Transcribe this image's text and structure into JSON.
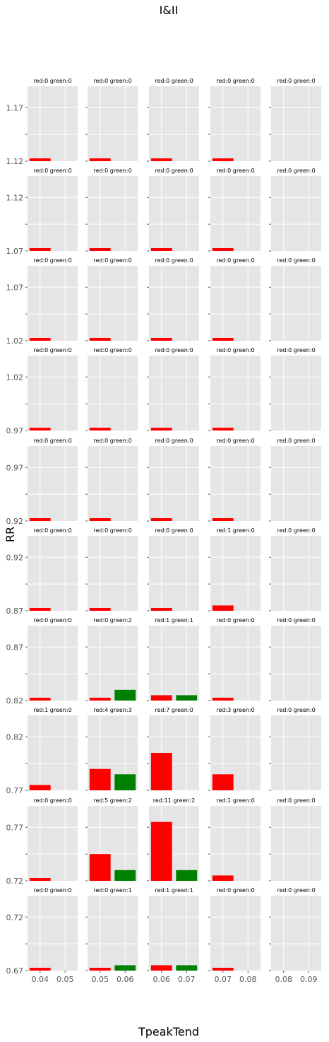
{
  "figure": {
    "title": "I&II",
    "xlabel": "TpeakTend",
    "ylabel": "RR"
  },
  "chart_data": {
    "type": "bar",
    "title": "I&II",
    "xlabel": "TpeakTend",
    "ylabel": "RR",
    "grid": true,
    "colors": {
      "red": "#ff0000",
      "green": "#008000",
      "panel_bg": "#e5e5e5",
      "grid": "#ffffff"
    },
    "rows": [
      {
        "ylim": [
          1.12,
          1.19
        ],
        "yticks": [
          "1.17",
          "1.12"
        ],
        "cells": [
          [
            0,
            0
          ],
          [
            0,
            0
          ],
          [
            0,
            0
          ],
          [
            0,
            0
          ],
          [
            0,
            0
          ]
        ]
      },
      {
        "ylim": [
          1.07,
          1.14
        ],
        "yticks": [
          "1.12",
          "1.07"
        ],
        "cells": [
          [
            0,
            0
          ],
          [
            0,
            0
          ],
          [
            0,
            0
          ],
          [
            0,
            0
          ],
          [
            0,
            0
          ]
        ]
      },
      {
        "ylim": [
          1.02,
          1.09
        ],
        "yticks": [
          "1.07",
          "1.02"
        ],
        "cells": [
          [
            0,
            0
          ],
          [
            0,
            0
          ],
          [
            0,
            0
          ],
          [
            0,
            0
          ],
          [
            0,
            0
          ]
        ]
      },
      {
        "ylim": [
          0.97,
          1.04
        ],
        "yticks": [
          "1.02",
          "0.97"
        ],
        "cells": [
          [
            0,
            0
          ],
          [
            0,
            0
          ],
          [
            0,
            0
          ],
          [
            0,
            0
          ],
          [
            0,
            0
          ]
        ]
      },
      {
        "ylim": [
          0.92,
          0.99
        ],
        "yticks": [
          "0.97",
          "0.92"
        ],
        "cells": [
          [
            0,
            0
          ],
          [
            0,
            0
          ],
          [
            0,
            0
          ],
          [
            0,
            0
          ],
          [
            0,
            0
          ]
        ]
      },
      {
        "ylim": [
          0.87,
          0.94
        ],
        "yticks": [
          "0.92",
          "0.87"
        ],
        "cells": [
          [
            0,
            0
          ],
          [
            0,
            0
          ],
          [
            0,
            0
          ],
          [
            1,
            0
          ],
          [
            0,
            0
          ]
        ]
      },
      {
        "ylim": [
          0.82,
          0.89
        ],
        "yticks": [
          "0.87",
          "0.82"
        ],
        "cells": [
          [
            0,
            0
          ],
          [
            0,
            2
          ],
          [
            1,
            1
          ],
          [
            0,
            0
          ],
          [
            0,
            0
          ]
        ]
      },
      {
        "ylim": [
          0.77,
          0.84
        ],
        "yticks": [
          "0.82",
          "0.77"
        ],
        "cells": [
          [
            1,
            0
          ],
          [
            4,
            3
          ],
          [
            7,
            0
          ],
          [
            3,
            0
          ],
          [
            0,
            0
          ]
        ]
      },
      {
        "ylim": [
          0.72,
          0.79
        ],
        "yticks": [
          "0.77",
          "0.72"
        ],
        "cells": [
          [
            0,
            0
          ],
          [
            5,
            2
          ],
          [
            11,
            2
          ],
          [
            1,
            0
          ],
          [
            0,
            0
          ]
        ]
      },
      {
        "ylim": [
          0.67,
          0.74
        ],
        "yticks": [
          "0.72",
          "0.67"
        ],
        "cells": [
          [
            0,
            0
          ],
          [
            0,
            1
          ],
          [
            1,
            1
          ],
          [
            0,
            0
          ],
          [
            0,
            0
          ]
        ]
      }
    ],
    "columns": [
      {
        "xticks": [
          "0.04",
          "0.05"
        ]
      },
      {
        "xticks": [
          "0.05",
          "0.06"
        ]
      },
      {
        "xticks": [
          "0.06",
          "0.07"
        ]
      },
      {
        "xticks": [
          "0.07",
          "0.08"
        ]
      },
      {
        "xticks": [
          "0.08",
          "0.09"
        ]
      }
    ],
    "count_max": 14
  }
}
